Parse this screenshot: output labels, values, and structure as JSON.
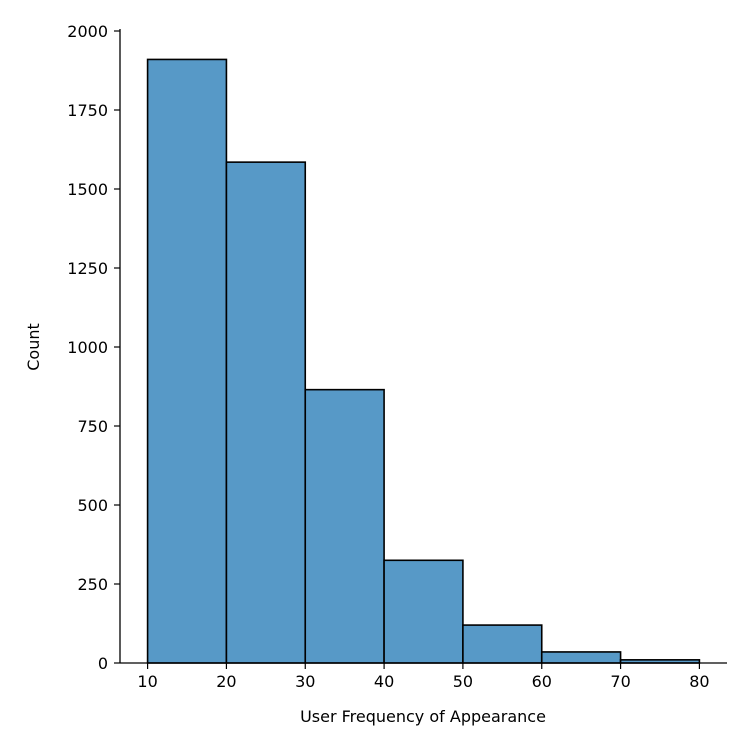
{
  "chart_data": {
    "type": "bar",
    "subtype": "histogram",
    "bins": [
      {
        "x0": 10,
        "x1": 20,
        "count": 1910
      },
      {
        "x0": 20,
        "x1": 30,
        "count": 1585
      },
      {
        "x0": 30,
        "x1": 40,
        "count": 865
      },
      {
        "x0": 40,
        "x1": 50,
        "count": 325
      },
      {
        "x0": 50,
        "x1": 60,
        "count": 120
      },
      {
        "x0": 60,
        "x1": 70,
        "count": 35
      },
      {
        "x0": 70,
        "x1": 80,
        "count": 10
      }
    ],
    "title": "",
    "xlabel": "User Frequency of Appearance",
    "ylabel": "Count",
    "xlim": [
      6.5,
      83.5
    ],
    "ylim": [
      0,
      2000
    ],
    "xticks": [
      "10",
      "20",
      "30",
      "40",
      "50",
      "60",
      "70",
      "80"
    ],
    "yticks": [
      "0",
      "250",
      "500",
      "750",
      "1000",
      "1250",
      "1500",
      "1750",
      "2000"
    ],
    "grid": false,
    "legend": "none",
    "colors": {
      "bar_fill": "#5799c7",
      "bar_edge": "#000000",
      "axis": "#000000"
    }
  }
}
